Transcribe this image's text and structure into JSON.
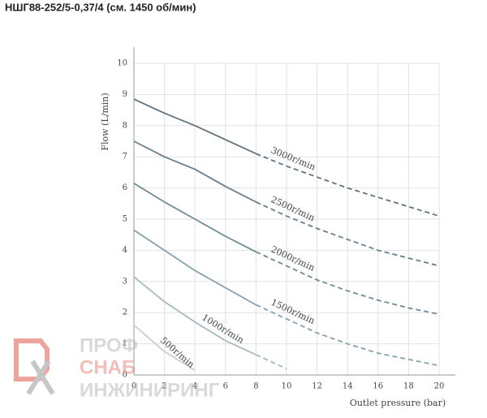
{
  "chart_data": {
    "type": "line",
    "title": "НШГ88-252/5-0,37/4 (см. 1450 об/мин)",
    "x_label": "Outlet pressure (bar)",
    "y_label": "Flow (L/min)",
    "x": [
      0,
      2,
      4,
      6,
      8,
      10,
      12,
      14,
      16,
      18,
      20
    ],
    "series": [
      {
        "name": "3000r/min",
        "color": "#5f7480",
        "values": [
          8.85,
          8.4,
          8.0,
          7.55,
          7.1,
          6.7,
          6.35,
          6.0,
          5.7,
          5.4,
          5.1
        ]
      },
      {
        "name": "2500r/min",
        "color": "#667f8c",
        "values": [
          7.5,
          7.0,
          6.6,
          6.05,
          5.55,
          5.1,
          4.7,
          4.35,
          4.0,
          3.75,
          3.5
        ]
      },
      {
        "name": "2000r/min",
        "color": "#6e8a99",
        "values": [
          6.15,
          5.55,
          5.0,
          4.45,
          3.95,
          3.5,
          3.05,
          2.7,
          2.4,
          2.15,
          1.95
        ]
      },
      {
        "name": "1500r/min",
        "color": "#84a0ae",
        "values": [
          4.65,
          4.0,
          3.35,
          2.8,
          2.25,
          1.8,
          1.35,
          1.0,
          0.7,
          0.5,
          0.3
        ]
      },
      {
        "name": "1000r/min",
        "color": "#a4b8c2",
        "values": [
          3.15,
          2.35,
          1.7,
          1.1,
          0.65,
          0.2,
          null,
          null,
          null,
          null,
          null
        ]
      },
      {
        "name": "500r/min",
        "color": "#c3d0d6",
        "values": [
          1.6,
          0.75,
          0.15,
          null,
          null,
          null,
          null,
          null,
          null,
          null,
          null
        ]
      }
    ],
    "dashed_after_x": 8,
    "xlim": [
      0,
      20
    ],
    "ylim": [
      0,
      10
    ],
    "xticks": [
      0,
      2,
      4,
      6,
      8,
      10,
      12,
      14,
      16,
      18,
      20
    ],
    "yticks": [
      0,
      1,
      2,
      3,
      4,
      5,
      6,
      7,
      8,
      9,
      10
    ],
    "grid": true,
    "watermark": [
      "ПРОФ",
      "СНАБ",
      "ИНЖИНИРИНГ"
    ]
  }
}
